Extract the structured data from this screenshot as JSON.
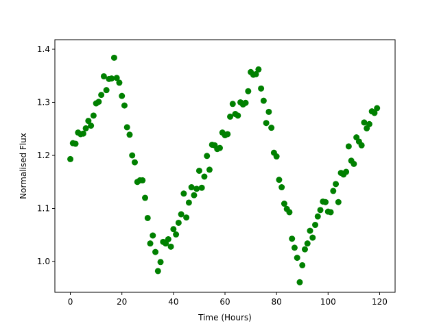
{
  "chart_data": {
    "type": "scatter",
    "title": "",
    "xlabel": "Time (Hours)",
    "ylabel": "Normalised Flux",
    "xlim": [
      -6,
      126
    ],
    "ylim": [
      0.942,
      1.418
    ],
    "xticks": [
      0,
      20,
      40,
      60,
      80,
      100,
      120
    ],
    "yticks": [
      1.0,
      1.1,
      1.2,
      1.3,
      1.4
    ],
    "xtick_labels": [
      "0",
      "20",
      "40",
      "60",
      "80",
      "100",
      "120"
    ],
    "ytick_labels": [
      "1.0",
      "1.1",
      "1.2",
      "1.3",
      "1.4"
    ],
    "grid": false,
    "marker_color": "#008000",
    "series": [
      {
        "x": [
          0,
          1,
          2,
          3,
          4,
          5,
          6,
          7,
          8,
          9,
          10,
          11,
          12,
          13,
          14,
          15,
          16,
          17,
          18,
          19,
          20,
          21,
          22,
          23,
          24,
          25,
          26,
          27,
          28,
          29,
          30,
          31,
          32,
          33,
          34,
          35,
          36,
          37,
          38,
          39,
          40,
          41,
          42,
          43,
          44,
          45,
          46,
          47,
          48,
          49,
          50,
          51,
          52,
          53,
          54,
          55,
          56,
          57,
          58,
          59,
          60,
          61,
          62,
          63,
          64,
          65,
          66,
          67,
          68,
          69,
          70,
          71,
          72,
          73,
          74,
          75,
          76,
          77,
          78,
          79,
          80,
          81,
          82,
          83,
          84,
          85,
          86,
          87,
          88,
          89,
          90,
          91,
          92,
          93,
          94,
          95,
          96,
          97,
          98,
          99,
          100,
          101,
          102,
          103,
          104,
          105,
          106,
          107,
          108,
          109,
          110,
          111,
          112,
          113,
          114,
          115,
          116,
          117,
          118,
          119
        ],
        "y": [
          1.193,
          1.223,
          1.222,
          1.243,
          1.24,
          1.241,
          1.251,
          1.265,
          1.256,
          1.275,
          1.298,
          1.301,
          1.314,
          1.349,
          1.323,
          1.344,
          1.345,
          1.384,
          1.346,
          1.337,
          1.312,
          1.294,
          1.253,
          1.239,
          1.2,
          1.187,
          1.15,
          1.153,
          1.153,
          1.12,
          1.082,
          1.034,
          1.049,
          1.018,
          0.982,
          0.999,
          1.037,
          1.034,
          1.042,
          1.028,
          1.061,
          1.051,
          1.073,
          1.089,
          1.128,
          1.083,
          1.111,
          1.14,
          1.125,
          1.137,
          1.171,
          1.139,
          1.16,
          1.199,
          1.173,
          1.22,
          1.219,
          1.212,
          1.214,
          1.243,
          1.238,
          1.24,
          1.273,
          1.297,
          1.278,
          1.275,
          1.3,
          1.296,
          1.299,
          1.321,
          1.357,
          1.352,
          1.353,
          1.362,
          1.326,
          1.303,
          1.261,
          1.282,
          1.252,
          1.205,
          1.198,
          1.154,
          1.14,
          1.109,
          1.099,
          1.093,
          1.043,
          1.026,
          1.007,
          0.961,
          0.993,
          1.023,
          1.034,
          1.058,
          1.045,
          1.069,
          1.085,
          1.097,
          1.113,
          1.112,
          1.094,
          1.093,
          1.133,
          1.146,
          1.112,
          1.167,
          1.164,
          1.169,
          1.217,
          1.19,
          1.184,
          1.234,
          1.226,
          1.219,
          1.262,
          1.251,
          1.259,
          1.283,
          1.28,
          1.289
        ]
      }
    ]
  }
}
